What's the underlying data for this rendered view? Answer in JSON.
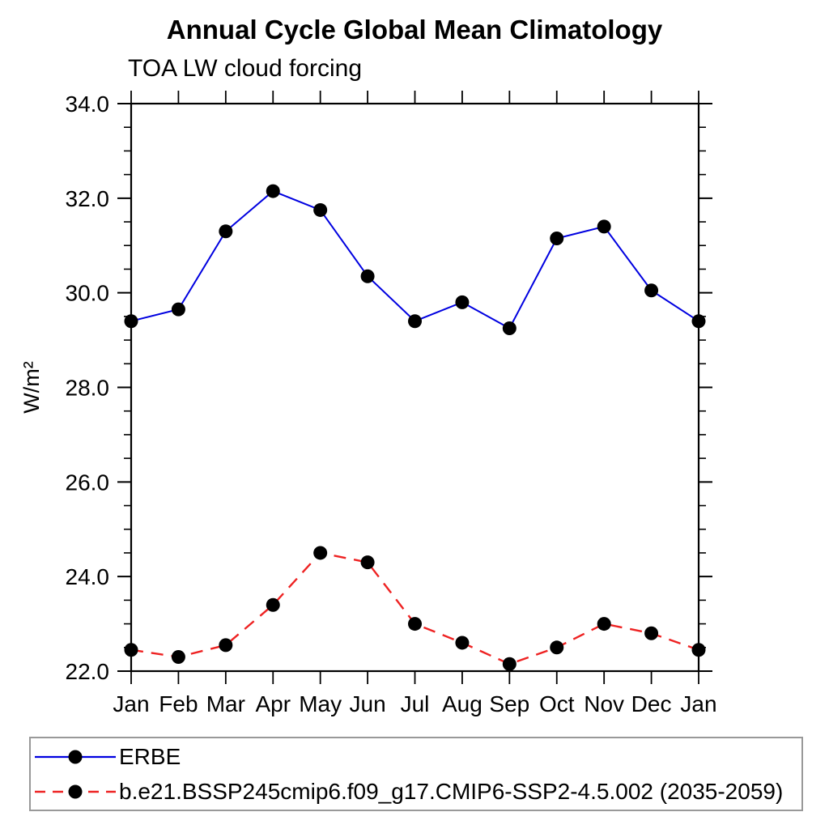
{
  "header": {
    "title": "Annual Cycle Global Mean Climatology",
    "subtitle": "TOA LW cloud forcing"
  },
  "chart_data": {
    "type": "line",
    "title": "Annual Cycle Global Mean Climatology",
    "subtitle": "TOA LW cloud forcing",
    "xlabel": "",
    "ylabel": "W/m²",
    "categories": [
      "Jan",
      "Feb",
      "Mar",
      "Apr",
      "May",
      "Jun",
      "Jul",
      "Aug",
      "Sep",
      "Oct",
      "Nov",
      "Dec",
      "Jan"
    ],
    "series": [
      {
        "name": "ERBE",
        "color": "#0000e0",
        "line_style": "solid",
        "marker": "black-filled-circle",
        "values": [
          29.4,
          29.65,
          31.3,
          32.15,
          31.75,
          30.35,
          29.4,
          29.8,
          29.25,
          31.15,
          31.4,
          30.05,
          29.4
        ]
      },
      {
        "name": "b.e21.BSSP245cmip6.f09_g17.CMIP6-SSP2-4.5.002 (2035-2059)",
        "color": "#ee2222",
        "line_style": "dashed",
        "marker": "black-filled-circle",
        "values": [
          22.45,
          22.3,
          22.55,
          23.4,
          24.5,
          24.3,
          23.0,
          22.6,
          22.15,
          22.5,
          23.0,
          22.8,
          22.45
        ]
      }
    ],
    "ylim": [
      22.0,
      34.0
    ],
    "ytick_major": 2.0,
    "ytick_minor": 0.5,
    "ytick_label_format": "one_decimal",
    "grid": false,
    "legend_position": "bottom-left-box",
    "axis_color": "#000000",
    "marker_color": "#000000"
  }
}
